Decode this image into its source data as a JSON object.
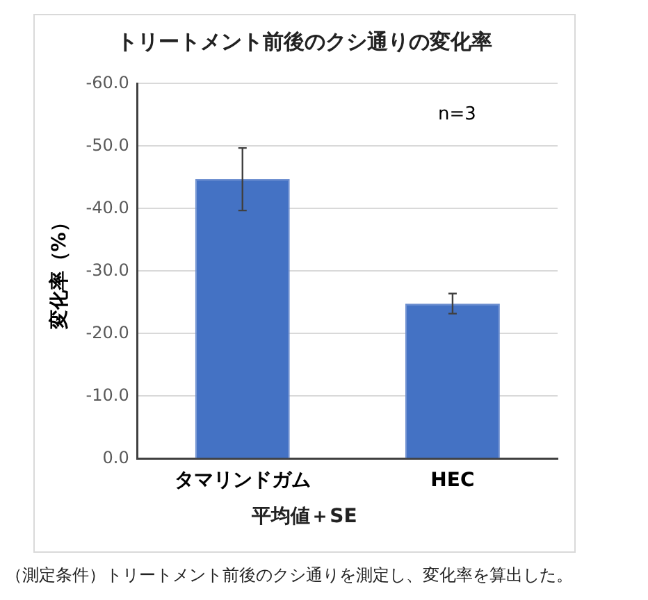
{
  "chart_data": {
    "type": "bar",
    "title": "トリートメント前後のクシ通りの変化率",
    "categories": [
      "タマリンドガム",
      "HEC"
    ],
    "values": [
      -44.7,
      -24.8
    ],
    "errors": [
      5,
      1.6
    ],
    "color": "#4472c4",
    "xlabel": "平均値＋SE",
    "ylabel": "変化率（%）",
    "ylim": [
      0,
      -60
    ],
    "yticks": [
      {
        "value": 0,
        "label": "0.0"
      },
      {
        "value": -10,
        "label": "-10.0"
      },
      {
        "value": -20,
        "label": "-20.0"
      },
      {
        "value": -30,
        "label": "-30.0"
      },
      {
        "value": -40,
        "label": "-40.0"
      },
      {
        "value": -50,
        "label": "-50.0"
      },
      {
        "value": -60,
        "label": "-60.0"
      }
    ],
    "grid": "y",
    "annotations": [
      "n=3",
      "（測定条件）トリートメント前後のクシ通りを測定し、変化率を算出した。"
    ]
  }
}
